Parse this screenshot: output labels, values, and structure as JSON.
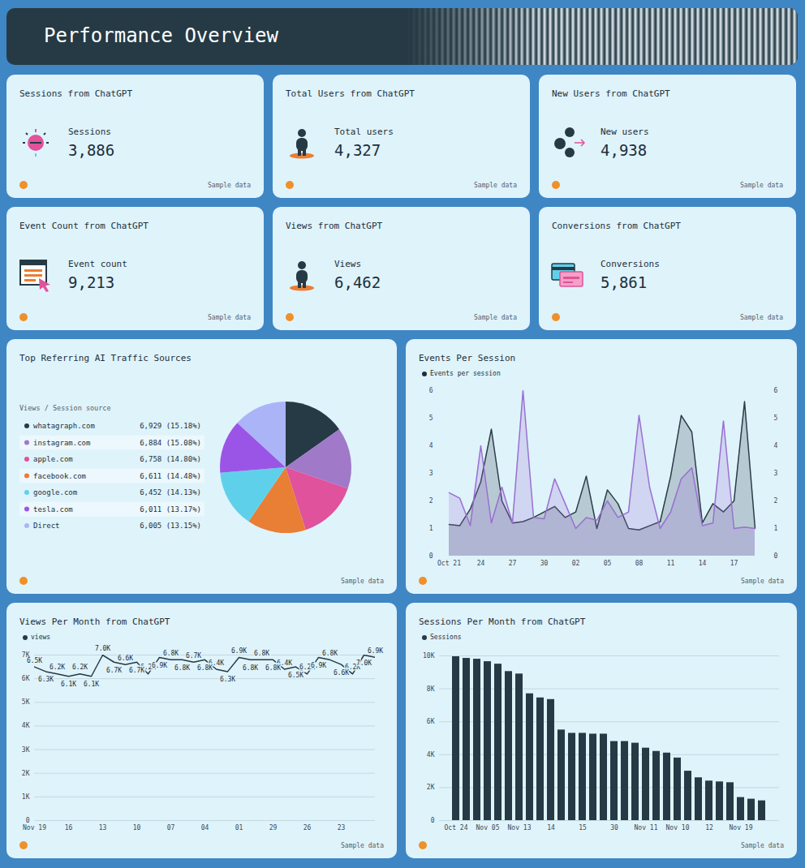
{
  "title": "Performance Overview",
  "footnote": "Sample data",
  "cards": [
    {
      "title": "Sessions from ChatGPT",
      "label": "Sessions",
      "value": "3,886"
    },
    {
      "title": "Total Users from ChatGPT",
      "label": "Total users",
      "value": "4,327"
    },
    {
      "title": "New Users from ChatGPT",
      "label": "New users",
      "value": "4,938"
    },
    {
      "title": "Event Count from ChatGPT",
      "label": "Event count",
      "value": "9,213"
    },
    {
      "title": "Views from ChatGPT",
      "label": "Views",
      "value": "6,462"
    },
    {
      "title": "Conversions from ChatGPT",
      "label": "Conversions",
      "value": "5,861"
    }
  ],
  "chart_data": [
    {
      "type": "pie",
      "title": "Top Referring AI Traffic Sources",
      "legend_title": "Views / Session source",
      "categories": [
        "whatagraph.com",
        "instagram.com",
        "apple.com",
        "facebook.com",
        "google.com",
        "tesla.com",
        "Direct"
      ],
      "values": [
        6929,
        6884,
        6758,
        6611,
        6452,
        6011,
        6005
      ],
      "value_labels": [
        "6,929 (15.18%)",
        "6,884 (15.08%)",
        "6,758 (14.80%)",
        "6,611 (14.48%)",
        "6,452 (14.13%)",
        "6,011 (13.17%)",
        "6,005 (13.15%)"
      ],
      "colors": [
        "#263a45",
        "#a079c9",
        "#e0529c",
        "#e97e35",
        "#5fd0ea",
        "#9b55e6",
        "#aab4f7"
      ],
      "legend": "left"
    },
    {
      "type": "area",
      "title": "Events Per Session",
      "categories": [
        "Oct 21",
        null,
        null,
        "24",
        null,
        null,
        "27",
        null,
        null,
        "30",
        null,
        null,
        "02",
        null,
        null,
        "05",
        null,
        null,
        "08",
        null,
        null,
        "11",
        null,
        null,
        "14",
        null,
        null,
        "17",
        null,
        null
      ],
      "series": [
        {
          "name": "Events per session",
          "color": "#2b3d47",
          "values": [
            1.15,
            1.1,
            1.7,
            2.7,
            4.6,
            2.0,
            1.2,
            1.25,
            1.4,
            1.6,
            1.8,
            1.4,
            1.6,
            2.9,
            1.0,
            2.4,
            1.9,
            1.0,
            0.95,
            1.1,
            1.25,
            2.9,
            5.1,
            4.5,
            1.2,
            1.9,
            1.6,
            2.0,
            5.6,
            1.0
          ]
        },
        {
          "color": "#9a6fd0",
          "values": [
            2.3,
            2.1,
            1.1,
            4.0,
            1.2,
            2.5,
            1.2,
            6.0,
            1.4,
            1.35,
            2.8,
            1.9,
            1.0,
            1.4,
            1.3,
            2.0,
            1.4,
            1.6,
            5.1,
            2.5,
            1.0,
            1.6,
            2.8,
            3.2,
            1.1,
            1.2,
            4.9,
            1.0,
            1.05,
            1.0
          ]
        }
      ],
      "ylim": [
        0,
        6
      ],
      "yticks": [
        0,
        1,
        2,
        3,
        4,
        5,
        6
      ],
      "grid": false,
      "legend": "top-left"
    },
    {
      "type": "line",
      "title": "Views Per Month from ChatGPT",
      "categories": [
        "Nov 19",
        null,
        null,
        "16",
        null,
        null,
        "13",
        null,
        null,
        "10",
        null,
        null,
        "07",
        null,
        null,
        "04",
        null,
        null,
        "01",
        null,
        null,
        "29",
        null,
        null,
        "26",
        null,
        null,
        "23",
        null,
        null,
        null
      ],
      "series": [
        {
          "name": "views",
          "color": "#263a45",
          "values": [
            6500,
            6300,
            6200,
            6100,
            6200,
            6100,
            7000,
            6700,
            6600,
            6700,
            6200,
            6900,
            6800,
            6800,
            6700,
            6800,
            6400,
            6300,
            6900,
            6800,
            6800,
            6800,
            6400,
            6500,
            6200,
            6900,
            6800,
            6600,
            6200,
            7000,
            6900
          ],
          "value_labels": [
            "6.5K",
            "6.3K",
            "6.2K",
            "6.1K",
            "6.2K",
            "6.1K",
            "7.0K",
            "6.7K",
            "6.6K",
            "6.7K",
            "6.2K",
            "6.9K",
            "6.8K",
            "6.8K",
            "6.7K",
            "6.8K",
            "6.4K",
            "6.3K",
            "6.9K",
            "6.8K",
            "6.8K",
            "6.8K",
            "6.4K",
            "6.5K",
            "6.2K",
            "6.9K",
            "6.8K",
            "6.6K",
            "6.2K",
            "7.0K",
            "6.9K"
          ]
        }
      ],
      "ylim": [
        0,
        7000
      ],
      "yticks": [
        0,
        {
          "value": 1000,
          "label": "1K"
        },
        {
          "value": 2000,
          "label": "2K"
        },
        {
          "value": 3000,
          "label": "3K"
        },
        {
          "value": 4000,
          "label": "4K"
        },
        {
          "value": 5000,
          "label": "5K"
        },
        {
          "value": 6000,
          "label": "6K"
        },
        {
          "value": 7000,
          "label": "7K"
        }
      ],
      "grid": true,
      "data_labels": true,
      "legend": "top-left"
    },
    {
      "type": "bar",
      "title": "Sessions Per Month from ChatGPT",
      "categories": [
        "Oct 24",
        null,
        null,
        "Nov 05",
        null,
        null,
        "Nov 13",
        null,
        null,
        "14",
        null,
        null,
        "15",
        null,
        null,
        "30",
        null,
        null,
        "Nov 11",
        null,
        null,
        "Nov 10",
        null,
        null,
        "12",
        null,
        null,
        "Nov 19",
        null,
        null
      ],
      "series": [
        {
          "name": "Sessions",
          "color": "#263a45",
          "values": [
            9950,
            9850,
            9800,
            9650,
            9500,
            9050,
            8900,
            7700,
            7450,
            7350,
            5500,
            5300,
            5300,
            5250,
            5250,
            4800,
            4800,
            4700,
            4400,
            4200,
            4100,
            3800,
            3000,
            2600,
            2400,
            2350,
            2300,
            1400,
            1300,
            1200
          ]
        }
      ],
      "ylim": [
        0,
        10000
      ],
      "yticks": [
        0,
        {
          "value": 2000,
          "label": "2K"
        },
        {
          "value": 4000,
          "label": "4K"
        },
        {
          "value": 6000,
          "label": "6K"
        },
        {
          "value": 8000,
          "label": "8K"
        },
        {
          "value": 10000,
          "label": "10K"
        }
      ],
      "grid": true,
      "legend": "top-left"
    }
  ]
}
